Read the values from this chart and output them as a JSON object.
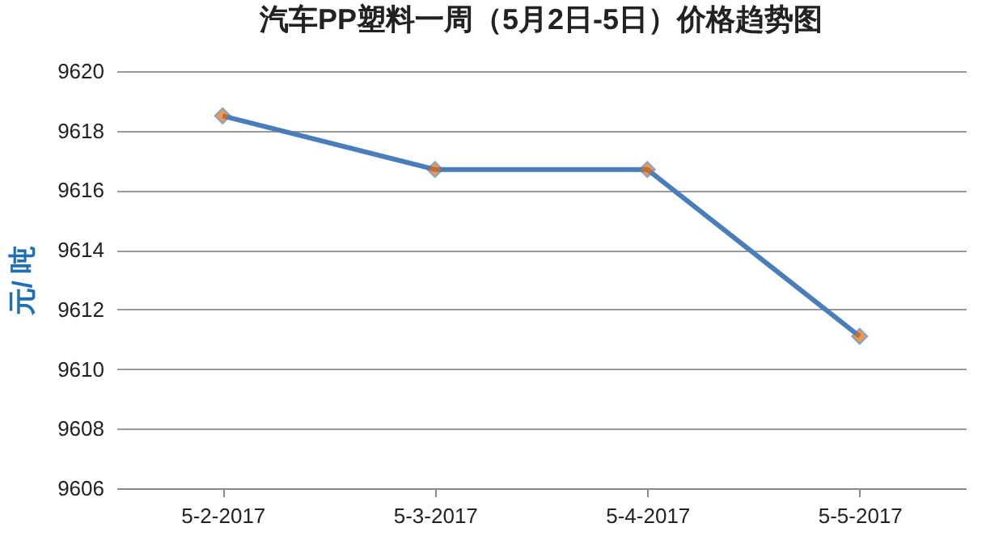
{
  "chart_data": {
    "type": "line",
    "title": "汽车PP塑料一周（5月2日-5日）价格趋势图",
    "ylabel": "元/ 吨",
    "categories": [
      "5-2-2017",
      "5-3-2017",
      "5-4-2017",
      "5-5-2017"
    ],
    "series": [
      {
        "color": "#4a7ebb",
        "colors": [
          "#e46c0a",
          "#e46c0a",
          "#e46c0a",
          "#e46c0a"
        ],
        "values": [
          9618.5,
          9616.7,
          9616.7,
          9611.1
        ]
      }
    ],
    "ylim": [
      9606,
      9620
    ],
    "yticks": [
      9606,
      9608,
      9610,
      9612,
      9614,
      9616,
      9618,
      9620
    ],
    "grid": "y",
    "marker": "diamond",
    "line_style": "solid"
  }
}
